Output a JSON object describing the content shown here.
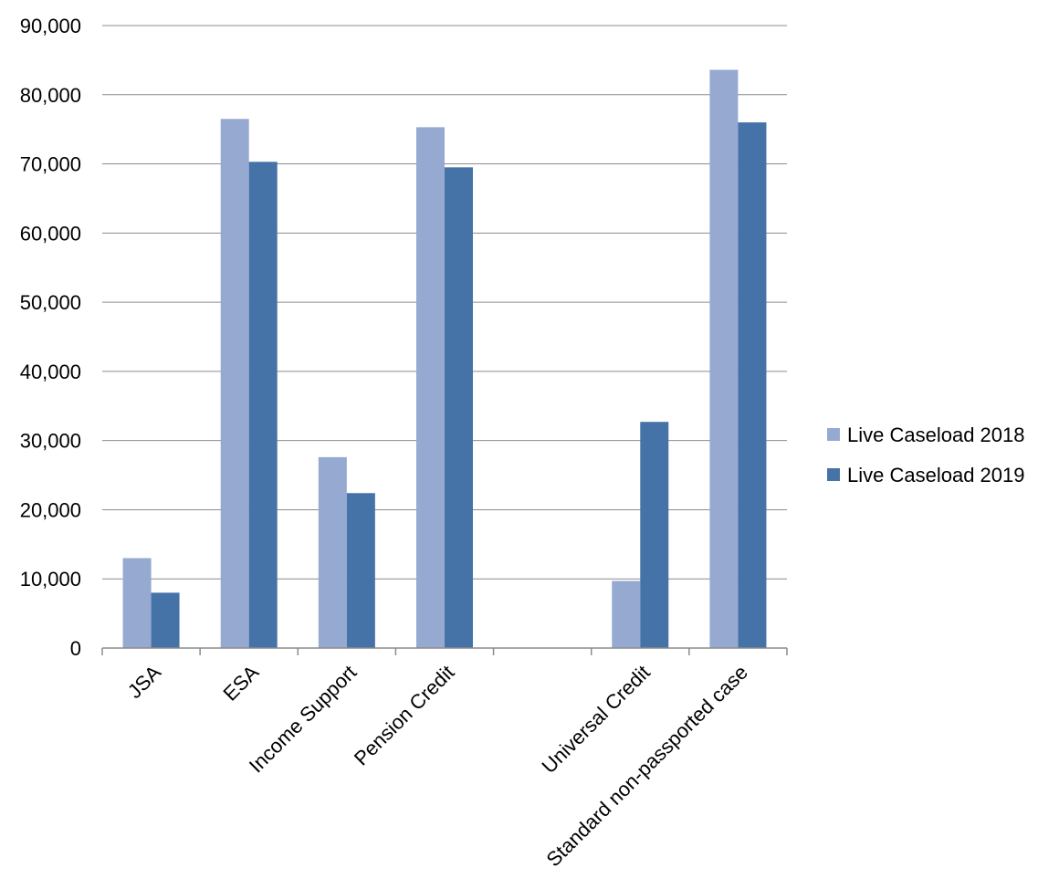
{
  "chart_data": {
    "type": "bar",
    "categories": [
      "JSA",
      "ESA",
      "Income Support",
      "Pension Credit",
      "",
      "Universal Credit",
      "Standard non-passported case"
    ],
    "series": [
      {
        "name": "Live Caseload 2018",
        "color": "#95a9d1",
        "values": [
          13000,
          76500,
          27600,
          75300,
          null,
          9700,
          83600
        ]
      },
      {
        "name": "Live Caseload 2019",
        "color": "#4573a8",
        "values": [
          8000,
          70300,
          22400,
          69500,
          null,
          32700,
          76000
        ]
      }
    ],
    "ylim": [
      0,
      90000
    ],
    "yticks": [
      0,
      10000,
      20000,
      30000,
      40000,
      50000,
      60000,
      70000,
      80000,
      90000
    ],
    "ytick_labels": [
      "0",
      "10,000",
      "20,000",
      "30,000",
      "40,000",
      "50,000",
      "60,000",
      "70,000",
      "80,000",
      "90,000"
    ],
    "grid": true,
    "legend_position": "right"
  }
}
